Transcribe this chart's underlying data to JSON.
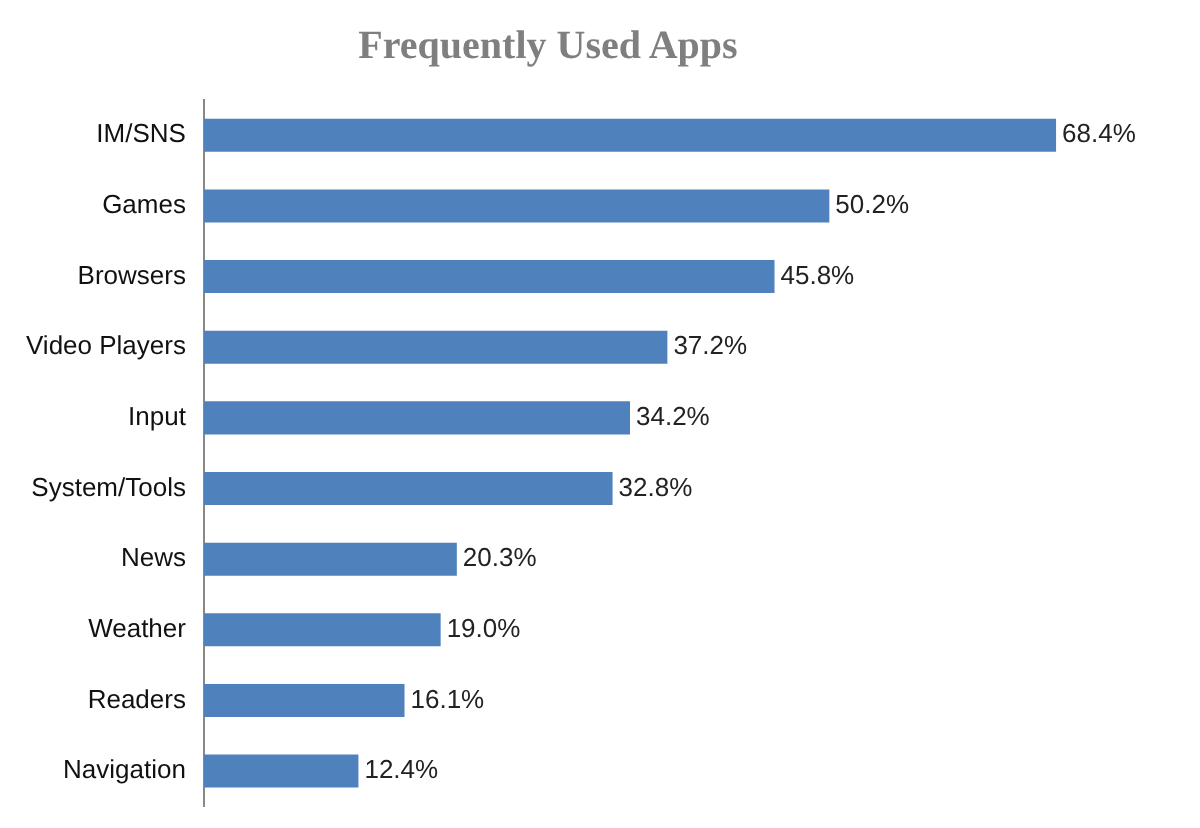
{
  "chart_data": {
    "type": "bar",
    "orientation": "horizontal",
    "title": "Frequently Used Apps",
    "categories": [
      "IM/SNS",
      "Games",
      "Browsers",
      "Video Players",
      "Input",
      "System/Tools",
      "News",
      "Weather",
      "Readers",
      "Navigation"
    ],
    "values": [
      68.4,
      50.2,
      45.8,
      37.2,
      34.2,
      32.8,
      20.3,
      19.0,
      16.1,
      12.4
    ],
    "value_labels": [
      "68.4%",
      "50.2%",
      "45.8%",
      "37.2%",
      "34.2%",
      "32.8%",
      "20.3%",
      "19.0%",
      "16.1%",
      "12.4%"
    ],
    "color": "#4f81bd",
    "grid": false,
    "legend": false,
    "tick_labels": "y"
  }
}
